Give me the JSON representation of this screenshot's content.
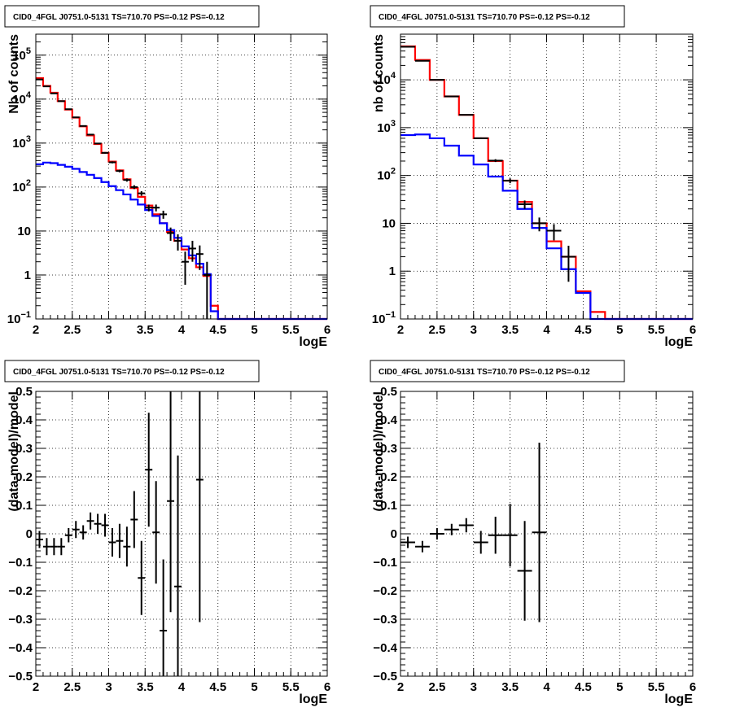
{
  "chart_data": [
    {
      "id": "counts_left",
      "type": "line",
      "title": "CID0_4FGL J0751.0-5131 TS=710.70 PS=-0.12 PS=-0.12",
      "xlabel": "logE",
      "ylabel": "Nb of counts",
      "xlim": [
        2,
        6
      ],
      "ylim": [
        0.1,
        300000
      ],
      "y_scale": "log",
      "grid": true,
      "x_ticks": [
        "2",
        "2.5",
        "3",
        "3.5",
        "4",
        "4.5",
        "5",
        "5.5",
        "6"
      ],
      "y_ticks": [
        {
          "value": 0.1,
          "base": "10",
          "exp": "−1"
        },
        {
          "value": 1,
          "label": "1"
        },
        {
          "value": 10,
          "label": "10"
        },
        {
          "value": 100,
          "base": "10",
          "exp": "2"
        },
        {
          "value": 1000,
          "base": "10",
          "exp": "3"
        },
        {
          "value": 10000,
          "base": "10",
          "exp": "4"
        },
        {
          "value": 100000,
          "base": "10",
          "exp": "5"
        }
      ],
      "bin_edges": [
        2.0,
        2.1,
        2.2,
        2.3,
        2.4,
        2.5,
        2.6,
        2.7,
        2.8,
        2.9,
        3.0,
        3.1,
        3.2,
        3.3,
        3.4,
        3.5,
        3.6,
        3.7,
        3.8,
        3.9,
        4.0,
        4.1,
        4.2,
        4.3,
        4.4,
        4.5,
        4.6,
        4.7,
        4.8,
        4.9,
        5.0,
        5.1,
        5.2,
        5.3,
        5.4,
        5.5,
        5.6,
        5.7,
        5.8,
        5.9,
        6.0
      ],
      "series": [
        {
          "color": "#ff0000",
          "kind": "step",
          "values": [
            30000,
            20000,
            14000,
            9000,
            5800,
            3800,
            2400,
            1500,
            950,
            600,
            380,
            240,
            150,
            95,
            60,
            38,
            24,
            15,
            9.5,
            6,
            3.8,
            2.4,
            1.5,
            0.95,
            0.2,
            0.1,
            0.1,
            0.1,
            0.1,
            0.1,
            0.1,
            0.1,
            0.1,
            0.1,
            0.1,
            0.1,
            0.1,
            0.1,
            0.1,
            0.1
          ]
        },
        {
          "color": "#0000ff",
          "kind": "step",
          "values": [
            330,
            360,
            350,
            320,
            290,
            260,
            220,
            190,
            160,
            130,
            105,
            85,
            68,
            52,
            40,
            30,
            22,
            15,
            10.5,
            7,
            4.5,
            2.8,
            1.8,
            1.05,
            0.15,
            0.1,
            0.1,
            0.1,
            0.1,
            0.1,
            0.1,
            0.1,
            0.1,
            0.1,
            0.1,
            0.1,
            0.1,
            0.1,
            0.1,
            0.1
          ]
        }
      ],
      "points": [
        {
          "x": 2.05,
          "y": 28000,
          "err": 170
        },
        {
          "x": 2.15,
          "y": 19500,
          "err": 140
        },
        {
          "x": 2.25,
          "y": 13500,
          "err": 116
        },
        {
          "x": 2.35,
          "y": 9000,
          "err": 95
        },
        {
          "x": 2.45,
          "y": 5900,
          "err": 77
        },
        {
          "x": 2.55,
          "y": 3850,
          "err": 62
        },
        {
          "x": 2.65,
          "y": 2450,
          "err": 50
        },
        {
          "x": 2.75,
          "y": 1560,
          "err": 40
        },
        {
          "x": 2.85,
          "y": 980,
          "err": 31
        },
        {
          "x": 2.95,
          "y": 600,
          "err": 25
        },
        {
          "x": 3.05,
          "y": 365,
          "err": 19
        },
        {
          "x": 3.15,
          "y": 232,
          "err": 15
        },
        {
          "x": 3.25,
          "y": 145,
          "err": 12
        },
        {
          "x": 3.35,
          "y": 100,
          "err": 10
        },
        {
          "x": 3.45,
          "y": 72,
          "err": 8.5
        },
        {
          "x": 3.55,
          "y": 34,
          "err": 6
        },
        {
          "x": 3.65,
          "y": 34,
          "err": 6
        },
        {
          "x": 3.75,
          "y": 24,
          "err": 5
        },
        {
          "x": 3.85,
          "y": 9,
          "err": 3
        },
        {
          "x": 3.95,
          "y": 6,
          "err": 2.4
        },
        {
          "x": 4.05,
          "y": 2,
          "err": 1.4
        },
        {
          "x": 4.15,
          "y": 4,
          "err": 2
        },
        {
          "x": 4.25,
          "y": 3,
          "err": 1.7
        },
        {
          "x": 4.35,
          "y": 1,
          "err": 1
        }
      ]
    },
    {
      "id": "counts_right",
      "type": "line",
      "title": "CID0_4FGL J0751.0-5131 TS=710.70 PS=-0.12 PS=-0.12",
      "xlabel": "logE",
      "ylabel": "nb of counts",
      "xlim": [
        2,
        6
      ],
      "ylim": [
        0.1,
        90000
      ],
      "y_scale": "log",
      "grid": true,
      "x_ticks": [
        "2",
        "2.5",
        "3",
        "3.5",
        "4",
        "4.5",
        "5",
        "5.5",
        "6"
      ],
      "y_ticks": [
        {
          "value": 0.1,
          "base": "10",
          "exp": "−1"
        },
        {
          "value": 1,
          "label": "1"
        },
        {
          "value": 10,
          "label": "10"
        },
        {
          "value": 100,
          "base": "10",
          "exp": "2"
        },
        {
          "value": 1000,
          "base": "10",
          "exp": "3"
        },
        {
          "value": 10000,
          "base": "10",
          "exp": "4"
        }
      ],
      "bin_edges": [
        2.0,
        2.2,
        2.4,
        2.6,
        2.8,
        3.0,
        3.2,
        3.4,
        3.6,
        3.8,
        4.0,
        4.2,
        4.4,
        4.6,
        4.8,
        5.0,
        5.2,
        5.4,
        5.6,
        5.8,
        6.0
      ],
      "series": [
        {
          "color": "#ff0000",
          "kind": "step",
          "values": [
            50000,
            26000,
            10000,
            4500,
            1850,
            600,
            200,
            78,
            28,
            10,
            4.2,
            2,
            0.38,
            0.14,
            0.1,
            0.1,
            0.1,
            0.1,
            0.1,
            0.1
          ]
        },
        {
          "color": "#0000ff",
          "kind": "step",
          "values": [
            700,
            720,
            600,
            420,
            260,
            170,
            95,
            48,
            20,
            8,
            3,
            1.1,
            0.35,
            0.1,
            0.1,
            0.1,
            0.1,
            0.1,
            0.1,
            0.1
          ]
        }
      ],
      "points": [
        {
          "x": 2.1,
          "y": 49000,
          "err": 221
        },
        {
          "x": 2.3,
          "y": 25000,
          "err": 158
        },
        {
          "x": 2.5,
          "y": 10000,
          "err": 100
        },
        {
          "x": 2.7,
          "y": 4500,
          "err": 67
        },
        {
          "x": 2.9,
          "y": 1850,
          "err": 43
        },
        {
          "x": 3.1,
          "y": 600,
          "err": 24
        },
        {
          "x": 3.3,
          "y": 205,
          "err": 14
        },
        {
          "x": 3.5,
          "y": 78,
          "err": 9
        },
        {
          "x": 3.7,
          "y": 25,
          "err": 5
        },
        {
          "x": 3.9,
          "y": 10,
          "err": 3.2
        },
        {
          "x": 4.1,
          "y": 7,
          "err": 2.6
        },
        {
          "x": 4.3,
          "y": 2,
          "err": 1.4
        }
      ]
    },
    {
      "id": "residual_left",
      "type": "scatter",
      "title": "CID0_4FGL J0751.0-5131 TS=710.70 PS=-0.12 PS=-0.12",
      "xlabel": "logE",
      "ylabel": "(data-model)/model",
      "xlim": [
        2,
        6
      ],
      "ylim": [
        -0.5,
        0.5
      ],
      "grid": true,
      "x_ticks": [
        "2",
        "2.5",
        "3",
        "3.5",
        "4",
        "4.5",
        "5",
        "5.5",
        "6"
      ],
      "y_ticks": [
        "−0.5",
        "−0.4",
        "−0.3",
        "−0.2",
        "−0.1",
        "0",
        "0.1",
        "0.2",
        "0.3",
        "0.4",
        "0.5"
      ],
      "bin_half_width": 0.05,
      "points": [
        {
          "x": 2.05,
          "y": -0.02,
          "err": 0.03
        },
        {
          "x": 2.15,
          "y": -0.045,
          "err": 0.03
        },
        {
          "x": 2.25,
          "y": -0.045,
          "err": 0.03
        },
        {
          "x": 2.35,
          "y": -0.045,
          "err": 0.03
        },
        {
          "x": 2.45,
          "y": -0.005,
          "err": 0.025
        },
        {
          "x": 2.55,
          "y": 0.015,
          "err": 0.03
        },
        {
          "x": 2.65,
          "y": 0.005,
          "err": 0.025
        },
        {
          "x": 2.75,
          "y": 0.045,
          "err": 0.03
        },
        {
          "x": 2.85,
          "y": 0.035,
          "err": 0.035
        },
        {
          "x": 2.95,
          "y": 0.03,
          "err": 0.04
        },
        {
          "x": 3.05,
          "y": -0.03,
          "err": 0.05
        },
        {
          "x": 3.15,
          "y": -0.025,
          "err": 0.06
        },
        {
          "x": 3.25,
          "y": -0.045,
          "err": 0.07
        },
        {
          "x": 3.35,
          "y": 0.05,
          "err": 0.1
        },
        {
          "x": 3.45,
          "y": -0.155,
          "err": 0.13
        },
        {
          "x": 3.55,
          "y": 0.225,
          "err": 0.2
        },
        {
          "x": 3.65,
          "y": 0.005,
          "err": 0.18
        },
        {
          "x": 3.75,
          "y": -0.34,
          "err": 0.25
        },
        {
          "x": 3.85,
          "y": 0.115,
          "err": 0.39
        },
        {
          "x": 3.95,
          "y": -0.185,
          "err": 0.46
        },
        {
          "x": 4.25,
          "y": 0.19,
          "err": 0.5
        }
      ]
    },
    {
      "id": "residual_right",
      "type": "scatter",
      "title": "CID0_4FGL J0751.0-5131 TS=710.70 PS=-0.12 PS=-0.12",
      "xlabel": "logE",
      "ylabel": "(data-model)/model",
      "xlim": [
        2,
        6
      ],
      "ylim": [
        -0.5,
        0.5
      ],
      "grid": true,
      "x_ticks": [
        "2",
        "2.5",
        "3",
        "3.5",
        "4",
        "4.5",
        "5",
        "5.5",
        "6"
      ],
      "y_ticks": [
        "−0.5",
        "−0.4",
        "−0.3",
        "−0.2",
        "−0.1",
        "0",
        "0.1",
        "0.2",
        "0.3",
        "0.4",
        "0.5"
      ],
      "bin_half_width": 0.1,
      "points": [
        {
          "x": 2.1,
          "y": -0.03,
          "err": 0.02
        },
        {
          "x": 2.3,
          "y": -0.045,
          "err": 0.02
        },
        {
          "x": 2.5,
          "y": 0.0,
          "err": 0.02
        },
        {
          "x": 2.7,
          "y": 0.015,
          "err": 0.02
        },
        {
          "x": 2.9,
          "y": 0.03,
          "err": 0.025
        },
        {
          "x": 3.1,
          "y": -0.03,
          "err": 0.04
        },
        {
          "x": 3.3,
          "y": -0.005,
          "err": 0.065
        },
        {
          "x": 3.5,
          "y": -0.005,
          "err": 0.11
        },
        {
          "x": 3.7,
          "y": -0.13,
          "err": 0.175
        },
        {
          "x": 3.9,
          "y": 0.005,
          "err": 0.315
        }
      ]
    }
  ]
}
